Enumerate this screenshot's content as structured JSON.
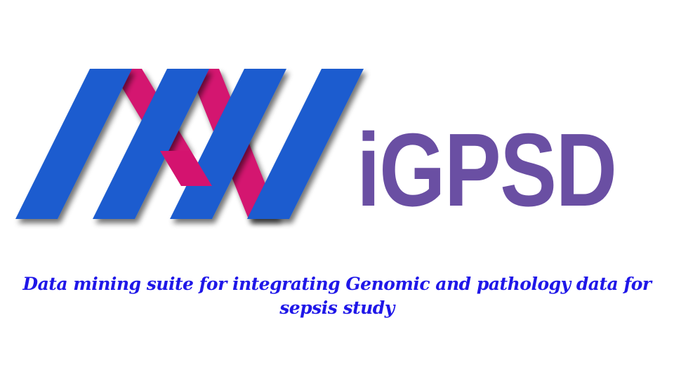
{
  "logo": {
    "mark_icon": "dna-double-helix-logo-icon",
    "text": "iGPSD",
    "text_color": "#6a4fa3",
    "strand_color_primary": "#1a5bcf",
    "strand_color_secondary": "#d4136f"
  },
  "tagline": {
    "line1": "Data mining suite for integrating Genomic and pathology data for",
    "line2": "sepsis study",
    "color": "#1f17e8"
  }
}
